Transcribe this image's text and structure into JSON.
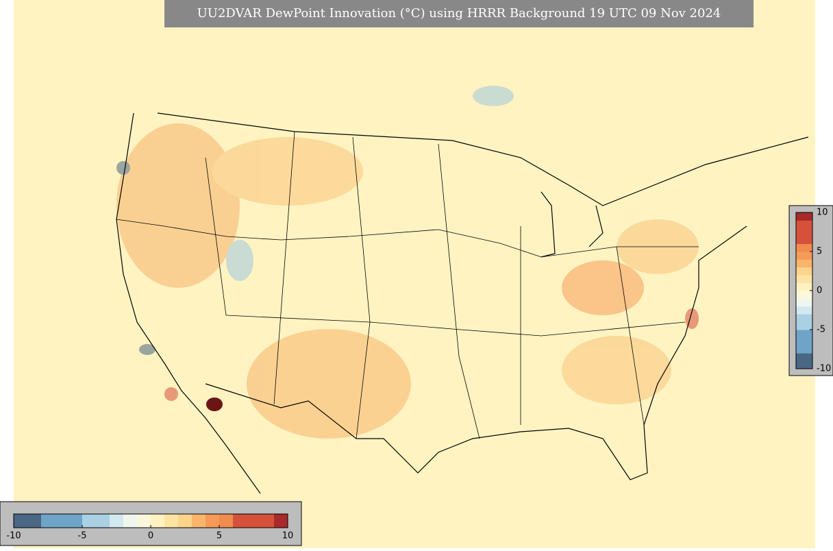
{
  "title": "UU2DVAR DewPoint Innovation (°C) using HRRR Background 19 UTC 09 Nov 2024",
  "colorbar": {
    "range": [
      -10,
      10
    ],
    "ticks": [
      -10,
      -5,
      0,
      5,
      10
    ],
    "colors": [
      "#4a6784",
      "#4a6784",
      "#6fa4c8",
      "#6fa4c8",
      "#6fa4c8",
      "#a9d0e3",
      "#a9d0e3",
      "#d2e9ef",
      "#eef6ee",
      "#fbf7dc",
      "#fff2c0",
      "#fde3a4",
      "#fcd38a",
      "#f9b56c",
      "#f59a58",
      "#f08c4e",
      "#d6513a",
      "#d6513a",
      "#d6513a",
      "#a82a2a"
    ]
  }
}
